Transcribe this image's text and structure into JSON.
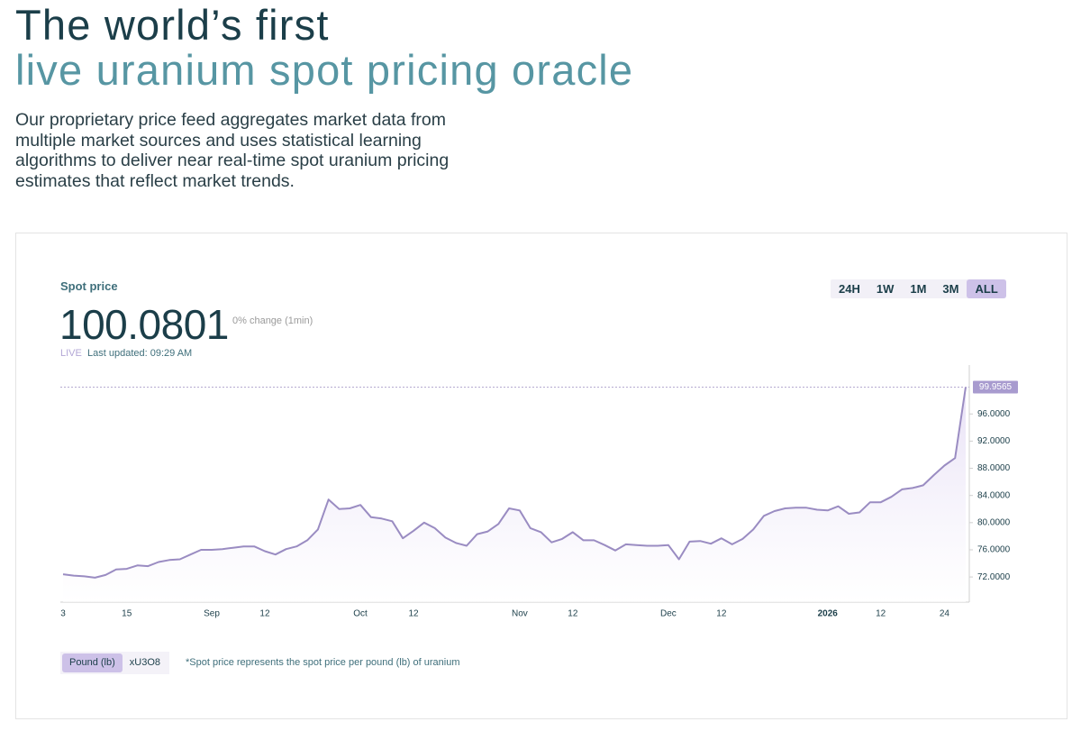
{
  "header": {
    "title_line1": "The world’s first",
    "title_line2": "live uranium spot pricing oracle",
    "description_lines": [
      "Our proprietary price feed aggregates market data from",
      "multiple market sources and uses statistical learning",
      "algorithms to deliver near real-time spot uranium pricing",
      "estimates that reflect market trends."
    ]
  },
  "card": {
    "label": "Spot price",
    "price": "100.0801",
    "change": "0% change (1min)",
    "live": "LIVE",
    "updated": "Last updated: 09:29 AM",
    "ranges": [
      "24H",
      "1W",
      "1M",
      "3M",
      "ALL"
    ],
    "active_range": 4,
    "units": [
      "Pound (lb)",
      "xU3O8"
    ],
    "active_unit": 0,
    "footnote": "*Spot price represents the spot price per pound (lb) of uranium"
  },
  "chart_data": {
    "type": "area",
    "color": "#9a8cc2",
    "fill": "#e6def5",
    "categories": [
      "3",
      null,
      null,
      null,
      null,
      null,
      "15",
      null,
      null,
      null,
      null,
      null,
      null,
      null,
      "Sep",
      null,
      null,
      null,
      null,
      "12",
      null,
      null,
      null,
      null,
      null,
      null,
      null,
      null,
      "Oct",
      null,
      null,
      null,
      null,
      "12",
      null,
      null,
      null,
      null,
      null,
      null,
      null,
      null,
      null,
      "Nov",
      null,
      null,
      null,
      null,
      "12",
      null,
      null,
      null,
      null,
      null,
      null,
      null,
      null,
      "Dec",
      null,
      null,
      null,
      null,
      "12",
      null,
      null,
      null,
      null,
      null,
      null,
      null,
      null,
      null,
      "2026",
      null,
      null,
      null,
      null,
      "12",
      null,
      null,
      null,
      null,
      null,
      "24",
      null,
      null
    ],
    "values": [
      72.4,
      72.2,
      72.1,
      71.9,
      72.3,
      73.1,
      73.2,
      73.7,
      73.6,
      74.2,
      74.5,
      74.6,
      75.3,
      76.0,
      76.0,
      76.1,
      76.3,
      76.5,
      76.5,
      75.8,
      75.3,
      76.1,
      76.5,
      77.4,
      79.0,
      83.4,
      82.0,
      82.1,
      82.6,
      80.8,
      80.6,
      80.2,
      77.7,
      78.8,
      80.0,
      79.2,
      77.8,
      77.0,
      76.6,
      78.3,
      78.7,
      79.8,
      82.1,
      81.8,
      79.2,
      78.6,
      77.1,
      77.6,
      78.6,
      77.4,
      77.4,
      76.7,
      75.9,
      76.8,
      76.7,
      76.6,
      76.6,
      76.7,
      74.6,
      77.2,
      77.3,
      76.9,
      77.7,
      76.8,
      77.6,
      79.0,
      81.0,
      81.7,
      82.1,
      82.2,
      82.2,
      81.9,
      81.8,
      82.4,
      81.3,
      81.5,
      83.0,
      83.0,
      83.8,
      84.9,
      85.1,
      85.5,
      87.0,
      88.4,
      89.5,
      99.9565
    ],
    "ylim": [
      68.3,
      103.2
    ],
    "yticks": [
      {
        "value": 72,
        "label": "72.0000"
      },
      {
        "value": 76,
        "label": "76.0000"
      },
      {
        "value": 80,
        "label": "80.0000"
      },
      {
        "value": 84,
        "label": "84.0000"
      },
      {
        "value": 88,
        "label": "88.0000"
      },
      {
        "value": 92,
        "label": "92.0000"
      },
      {
        "value": 96,
        "label": "96.0000"
      }
    ],
    "bold_category": 72
  }
}
